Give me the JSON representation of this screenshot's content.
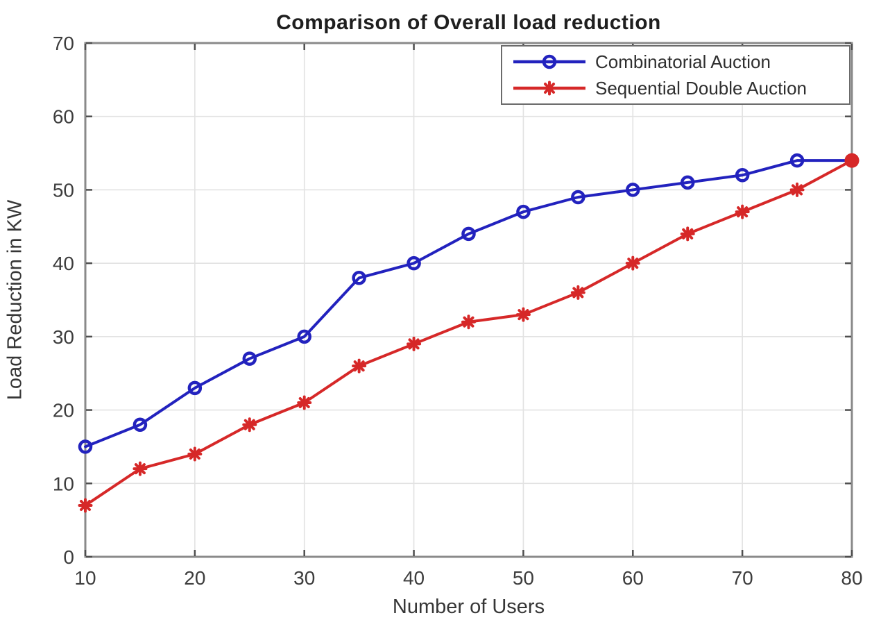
{
  "chart_data": {
    "type": "line",
    "title": "Comparison of Overall load reduction",
    "xlabel": "Number of Users",
    "ylabel": "Load Reduction in KW",
    "x": [
      10,
      15,
      20,
      25,
      30,
      35,
      40,
      45,
      50,
      55,
      60,
      65,
      70,
      75,
      80
    ],
    "series": [
      {
        "name": "Combinatorial Auction",
        "color": "#2222be",
        "marker": "circle",
        "values": [
          15,
          18,
          23,
          27,
          30,
          38,
          40,
          44,
          47,
          49,
          50,
          51,
          52,
          54,
          54
        ]
      },
      {
        "name": "Sequential Double Auction",
        "color": "#d62828",
        "marker": "asterisk",
        "values": [
          7,
          12,
          14,
          18,
          21,
          26,
          29,
          32,
          33,
          36,
          40,
          44,
          47,
          50,
          54
        ]
      }
    ],
    "xlim": [
      10,
      80
    ],
    "ylim": [
      0,
      70
    ],
    "xticks": [
      10,
      20,
      30,
      40,
      50,
      60,
      70,
      80
    ],
    "yticks": [
      0,
      10,
      20,
      30,
      40,
      50,
      60,
      70
    ],
    "grid": true,
    "legend_position": "top-right",
    "end_overlap_point": {
      "x": 80,
      "y": 54
    },
    "colors": {
      "axis": "#8a8a8a",
      "grid": "#e2e2e2",
      "tick": "#4f4f4f",
      "tick_text": "#3d3d3d"
    }
  }
}
